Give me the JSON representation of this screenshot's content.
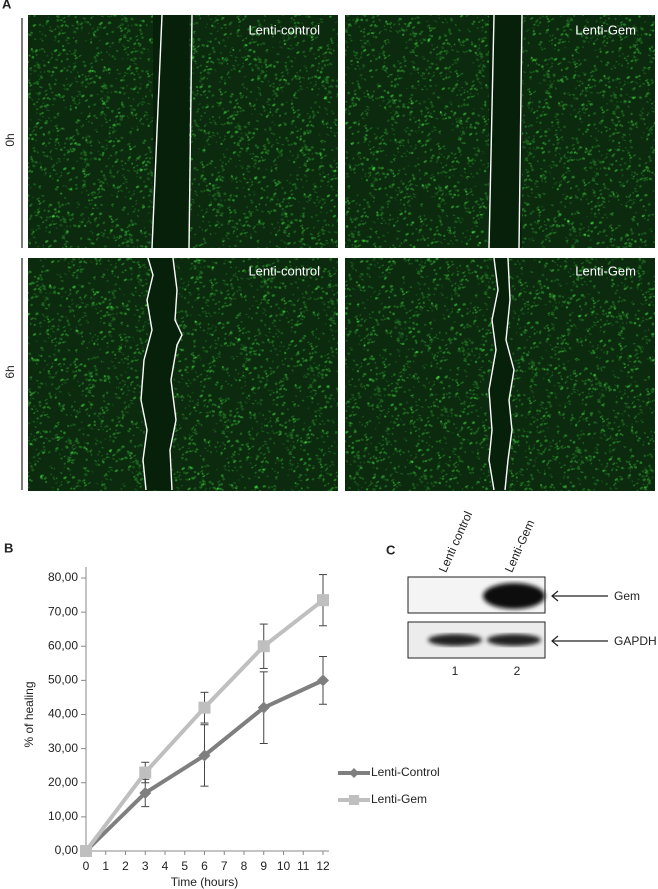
{
  "figure": {
    "panel_a": {
      "label": "A",
      "rows": [
        "0h",
        "6h"
      ],
      "images": [
        [
          "Lenti-control",
          "Lenti-Gem"
        ],
        [
          "Lenti-control",
          "Lenti-Gem"
        ]
      ]
    },
    "panel_b": {
      "label": "B"
    },
    "panel_c": {
      "label": "C",
      "lanes": [
        "Lenti control",
        "Lenti-Gem"
      ],
      "lane_numbers": [
        "1",
        "2"
      ],
      "bands": [
        "Gem",
        "GAPDH"
      ]
    }
  },
  "chart_data": {
    "type": "line",
    "xlabel": "Time (hours)",
    "ylabel": "% of healing",
    "x": [
      0,
      3,
      6,
      9,
      12
    ],
    "xlim": [
      0,
      12
    ],
    "xticks": [
      0,
      1,
      2,
      3,
      4,
      5,
      6,
      7,
      8,
      9,
      10,
      11,
      12
    ],
    "ylim": [
      0,
      80
    ],
    "yticks": [
      {
        "value": 0,
        "label": "0,00"
      },
      {
        "value": 10,
        "label": "10,00"
      },
      {
        "value": 20,
        "label": "20,00"
      },
      {
        "value": 30,
        "label": "30,00"
      },
      {
        "value": 40,
        "label": "40,00"
      },
      {
        "value": 50,
        "label": "50,00"
      },
      {
        "value": 60,
        "label": "60,00"
      },
      {
        "value": 70,
        "label": "70,00"
      },
      {
        "value": 80,
        "label": "80,00"
      }
    ],
    "legend": "right",
    "series": [
      {
        "name": "Lenti-Control",
        "color": "#7f7f7f",
        "marker": "diamond",
        "values": [
          0,
          17,
          28,
          42,
          50
        ],
        "errors": [
          0,
          4,
          9,
          10.5,
          7
        ]
      },
      {
        "name": "Lenti-Gem",
        "color": "#bfbfbf",
        "marker": "square",
        "values": [
          0,
          23,
          42,
          60,
          73.5
        ],
        "errors": [
          0,
          3,
          4.5,
          6.5,
          7.5
        ]
      }
    ]
  }
}
